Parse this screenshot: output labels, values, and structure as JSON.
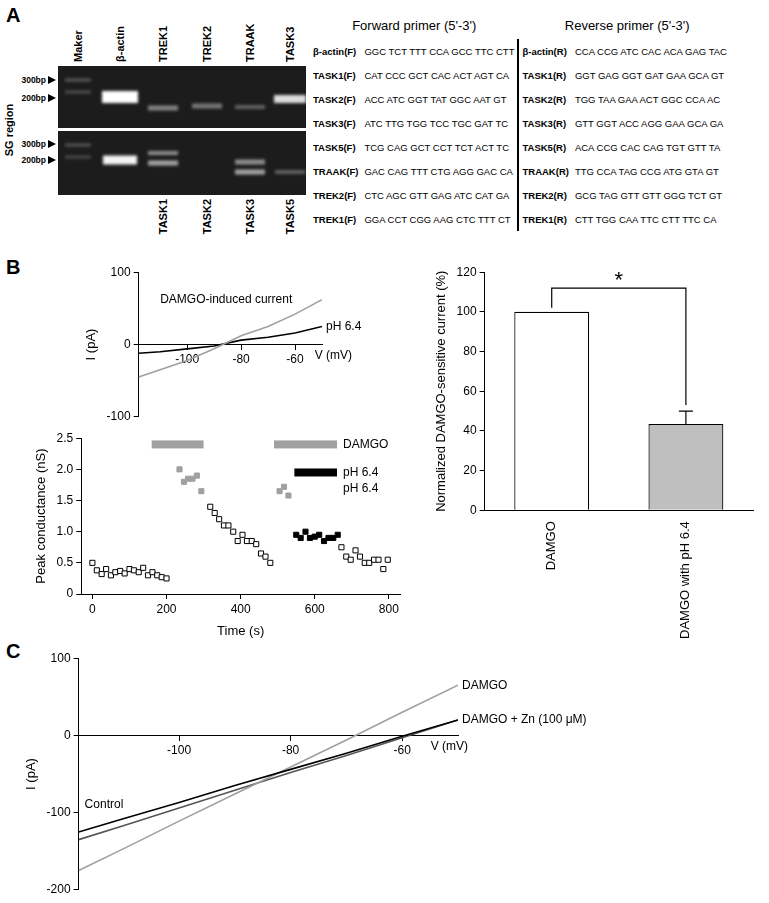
{
  "panels": [
    "A",
    "B",
    "C"
  ],
  "gel": {
    "region": "SG region",
    "top_lanes": [
      "Maker",
      "β-actin",
      "TREK1",
      "TREK2",
      "TRAAK",
      "TASK3"
    ],
    "bottom_lanes": [
      null,
      null,
      "TASK1",
      "TASK2",
      "TASK3",
      "TASK5"
    ],
    "top_sizes": [
      "300bp",
      "200bp"
    ],
    "bottom_sizes": [
      "300bp",
      "200bp"
    ]
  },
  "primers": {
    "header": [
      "Forward primer (5'-3')",
      "Reverse primer (5'-3')"
    ],
    "rows": [
      [
        "β-actin(F)",
        "GGC TCT TTT CCA GCC TTC CTT",
        "β-actin(R)",
        "CCA CCG ATC CAC ACA GAG TAC"
      ],
      [
        "TASK1(F)",
        "CAT CCC GCT CAC ACT AGT CA",
        "TASK1(R)",
        "GGT GAG GGT GAT GAA GCA GT"
      ],
      [
        "TASK2(F)",
        "ACC ATC GGT TAT GGC AAT GT",
        "TASK2(R)",
        "TGG TAA GAA ACT GGC CCA AC"
      ],
      [
        "TASK3(F)",
        "ATC TTG TGG TCC TGC GAT TC",
        "TASK3(R)",
        "GTT GGT ACC AGG GAA GCA GA"
      ],
      [
        "TASK5(F)",
        "TCG CAG GCT CCT TCT ACT TC",
        "TASK5(R)",
        "ACA CCG CAC CAG TGT GTT TA"
      ],
      [
        "TRAAK(F)",
        "GAC CAG TTT CTG AGG GAC CA",
        "TRAAK(R)",
        "TTG CCA TAG CCG ATG GTA GT"
      ],
      [
        "TREK2(F)",
        "CTC AGC GTT GAG ATC CAT GA",
        "TREK2(R)",
        "GCG TAG GTT GTT GGG TCT GT"
      ],
      [
        "TREK1(F)",
        "GGA CCT CGG AAG CTC TTT CT",
        "TREK1(R)",
        "CTT TGG CAA TTC CTT TTC CA"
      ]
    ]
  },
  "chart_data": [
    {
      "type": "line",
      "x_label": "V (mV)",
      "y_label": "I (pA)",
      "x": [
        -118,
        -110,
        -100,
        -90,
        -80,
        -70,
        -60,
        -50
      ],
      "xlim": [
        -118,
        -50
      ],
      "xticks": [
        -100,
        -80,
        -60
      ],
      "ylim": [
        -100,
        100
      ],
      "yticks": [
        -100,
        0,
        100
      ],
      "grid": false,
      "series": [
        {
          "name": "DAMGO-induced current",
          "color": "#a0a0a0",
          "values": [
            -45,
            -35,
            -22,
            -6,
            12,
            25,
            42,
            62
          ]
        },
        {
          "name": "pH 6.4",
          "color": "#000000",
          "values": [
            -12,
            -10,
            -6,
            -2,
            6,
            10,
            16,
            25
          ]
        }
      ]
    },
    {
      "type": "scatter",
      "x_label": "Time (s)",
      "y_label": "Peak conductance (nS)",
      "xlim": [
        -30,
        830
      ],
      "xticks": [
        0,
        200,
        400,
        600,
        800
      ],
      "ylim": [
        0,
        2.5
      ],
      "yticks": [
        0,
        0.5,
        {
          "value": 1,
          "label": "1.0"
        },
        1.5,
        {
          "value": 2,
          "label": "2.0"
        },
        2.5
      ],
      "grid": false,
      "series": [
        {
          "color": "#000000",
          "marker": "open_square",
          "x": [
            0,
            12,
            25,
            37,
            50,
            62,
            75,
            87,
            100,
            112,
            125,
            137,
            150,
            162,
            175,
            187,
            200,
            318,
            330,
            342,
            355,
            367,
            380,
            392,
            405,
            417,
            430,
            442,
            455,
            467,
            480,
            672,
            685,
            697,
            710,
            722,
            735,
            747,
            760,
            772,
            785,
            797
          ],
          "values": [
            0.5,
            0.38,
            0.32,
            0.4,
            0.3,
            0.35,
            0.37,
            0.33,
            0.4,
            0.38,
            0.35,
            0.42,
            0.3,
            0.35,
            0.3,
            0.27,
            0.25,
            1.4,
            1.3,
            1.2,
            1.1,
            1.1,
            1.0,
            0.85,
            0.95,
            0.85,
            0.85,
            0.8,
            0.65,
            0.6,
            0.5,
            0.75,
            0.6,
            0.55,
            0.7,
            0.6,
            0.5,
            0.5,
            0.55,
            0.55,
            0.4,
            0.55
          ]
        },
        {
          "color": "#a0a0a0",
          "marker": "square",
          "x": [
            235,
            247,
            258,
            270,
            282,
            294,
            505,
            517,
            529
          ],
          "values": [
            2.0,
            1.8,
            1.85,
            1.85,
            1.9,
            1.65,
            1.65,
            1.72,
            1.58
          ]
        },
        {
          "color": "#000000",
          "marker": "square",
          "x": [
            550,
            562,
            575,
            587,
            600,
            612,
            625,
            637,
            650,
            662
          ],
          "values": [
            0.95,
            0.9,
            1.0,
            0.9,
            0.92,
            0.95,
            0.85,
            0.9,
            0.9,
            0.95
          ]
        }
      ],
      "treatment_bars": [
        {
          "x": [
            160,
            300
          ],
          "y": 2.4,
          "color": "#a0a0a0"
        },
        {
          "x": [
            490,
            660
          ],
          "y": 2.4,
          "color": "#a0a0a0",
          "label": "DAMGO"
        },
        {
          "x": [
            545,
            660
          ],
          "y": 1.95,
          "color": "#000000",
          "label": "pH 6.4"
        }
      ],
      "annotations": [
        "pH 6.4"
      ]
    },
    {
      "type": "bar",
      "y_label": "Normalized DAMGO-sensitive current (%)",
      "categories": [
        "DAMGO",
        "DAMGO with pH 6.4"
      ],
      "values": [
        100,
        43.5
      ],
      "errors": [
        0,
        6.5
      ],
      "colors": [
        "#ffffff",
        "#bfbfbf"
      ],
      "ylim": [
        0,
        120
      ],
      "yticks": [
        0,
        20,
        40,
        60,
        80,
        100,
        120
      ],
      "grid": false,
      "significance": {
        "text": "*",
        "between": [
          "DAMGO",
          "DAMGO with pH 6.4"
        ],
        "y": 112
      }
    },
    {
      "type": "line",
      "x_label": "V (mV)",
      "y_label": "I (pA)",
      "x": [
        -118,
        -110,
        -100,
        -90,
        -80,
        -70,
        -60,
        -50
      ],
      "xlim": [
        -118,
        -50
      ],
      "xticks": [
        -100,
        -80,
        -60
      ],
      "ylim": [
        -200,
        100
      ],
      "yticks": [
        -200,
        -100,
        0,
        100
      ],
      "grid": false,
      "series": [
        {
          "name": "Control",
          "color": "#000000",
          "values": [
            -125,
            -108,
            -87,
            -65,
            -44,
            -23,
            -1,
            20
          ]
        },
        {
          "name": "DAMGO",
          "color": "#a0a0a0",
          "values": [
            -175,
            -147,
            -111,
            -76,
            -41,
            -6,
            30,
            65
          ]
        },
        {
          "name": "DAMGO + Zn (100 μM)",
          "color": "#555555",
          "values": [
            -135,
            -117,
            -94,
            -71,
            -48,
            -26,
            -3,
            20
          ]
        }
      ]
    }
  ]
}
